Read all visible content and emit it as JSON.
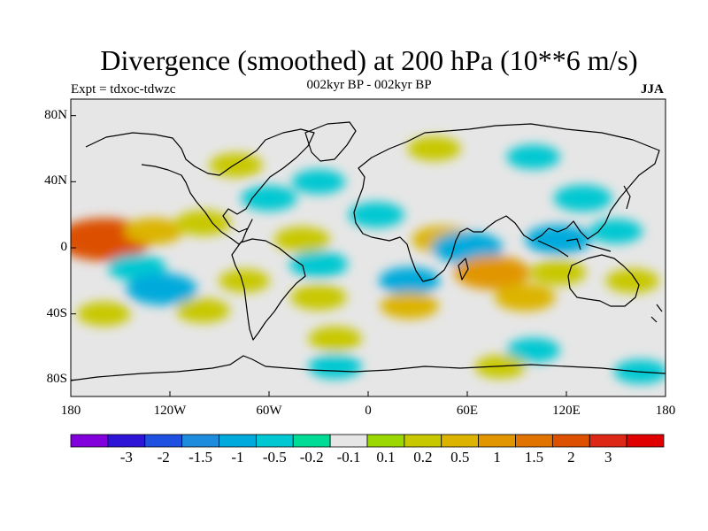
{
  "header": {
    "title": "Divergence (smoothed) at 200 hPa (10**6 m/s)",
    "subtitle": "002kyr BP - 002kyr BP",
    "experiment": "Expt = tdxoc-tdwzc",
    "season": "JJA"
  },
  "map": {
    "lon_range": [
      -180,
      180
    ],
    "lat_range": [
      -90,
      90
    ],
    "y_tick_labels": [
      {
        "lat": 80,
        "label": "80N"
      },
      {
        "lat": 40,
        "label": "40N"
      },
      {
        "lat": 0,
        "label": "0"
      },
      {
        "lat": -40,
        "label": "40S"
      },
      {
        "lat": -80,
        "label": "80S"
      }
    ],
    "x_tick_labels": [
      {
        "lon": -180,
        "label": "180"
      },
      {
        "lon": -120,
        "label": "120W"
      },
      {
        "lon": -60,
        "label": "60W"
      },
      {
        "lon": 0,
        "label": "0"
      },
      {
        "lon": 60,
        "label": "60E"
      },
      {
        "lon": 120,
        "label": "120E"
      },
      {
        "lon": 180,
        "label": "180"
      }
    ],
    "background_color": "#e6e6e6",
    "coast_color": "#000000"
  },
  "colorbar": {
    "colors": [
      "#8200dc",
      "#2d14d7",
      "#1e50e1",
      "#1e8cdc",
      "#00aadc",
      "#00c8d2",
      "#00dc96",
      "#e6e6e6",
      "#9bd700",
      "#c8c800",
      "#dcb400",
      "#e19600",
      "#e17300",
      "#dc5000",
      "#dc2814",
      "#e10000"
    ],
    "labels": [
      "-3",
      "-2",
      "-1.5",
      "-1",
      "-0.5",
      "-0.2",
      "-0.1",
      "0.1",
      "0.2",
      "0.5",
      "1",
      "1.5",
      "2",
      "3"
    ]
  },
  "field_anomalies": [
    {
      "lon": -160,
      "lat": 5,
      "value": 2.0
    },
    {
      "lon": -130,
      "lat": 10,
      "value": 0.5
    },
    {
      "lon": -100,
      "lat": 15,
      "value": 0.4
    },
    {
      "lon": -140,
      "lat": -12,
      "value": -0.5
    },
    {
      "lon": -125,
      "lat": -25,
      "value": -1.0
    },
    {
      "lon": -160,
      "lat": -40,
      "value": 0.3
    },
    {
      "lon": -100,
      "lat": -38,
      "value": 0.3
    },
    {
      "lon": -75,
      "lat": -20,
      "value": 0.2
    },
    {
      "lon": -60,
      "lat": 30,
      "value": -0.4
    },
    {
      "lon": -30,
      "lat": 40,
      "value": -0.3
    },
    {
      "lon": -40,
      "lat": 5,
      "value": 0.4
    },
    {
      "lon": -30,
      "lat": -10,
      "value": -0.5
    },
    {
      "lon": -30,
      "lat": -30,
      "value": 0.4
    },
    {
      "lon": 5,
      "lat": 20,
      "value": -0.4
    },
    {
      "lon": 25,
      "lat": -20,
      "value": -0.6
    },
    {
      "lon": 25,
      "lat": -35,
      "value": 0.5
    },
    {
      "lon": 45,
      "lat": 5,
      "value": 0.6
    },
    {
      "lon": 60,
      "lat": 0,
      "value": -1.0
    },
    {
      "lon": 75,
      "lat": -15,
      "value": 1.2
    },
    {
      "lon": 95,
      "lat": -30,
      "value": 0.6
    },
    {
      "lon": 115,
      "lat": 5,
      "value": -0.8
    },
    {
      "lon": 130,
      "lat": 30,
      "value": -0.5
    },
    {
      "lon": 150,
      "lat": 10,
      "value": -0.3
    },
    {
      "lon": 160,
      "lat": -20,
      "value": 0.3
    },
    {
      "lon": 115,
      "lat": -15,
      "value": 0.4
    },
    {
      "lon": -80,
      "lat": 50,
      "value": 0.3
    },
    {
      "lon": 40,
      "lat": 60,
      "value": 0.3
    },
    {
      "lon": 100,
      "lat": 55,
      "value": -0.3
    },
    {
      "lon": -20,
      "lat": -55,
      "value": 0.3
    },
    {
      "lon": 100,
      "lat": -62,
      "value": -0.3
    },
    {
      "lon": -20,
      "lat": -72,
      "value": -0.3
    },
    {
      "lon": 80,
      "lat": -72,
      "value": 0.2
    },
    {
      "lon": 165,
      "lat": -75,
      "value": -0.3
    }
  ]
}
